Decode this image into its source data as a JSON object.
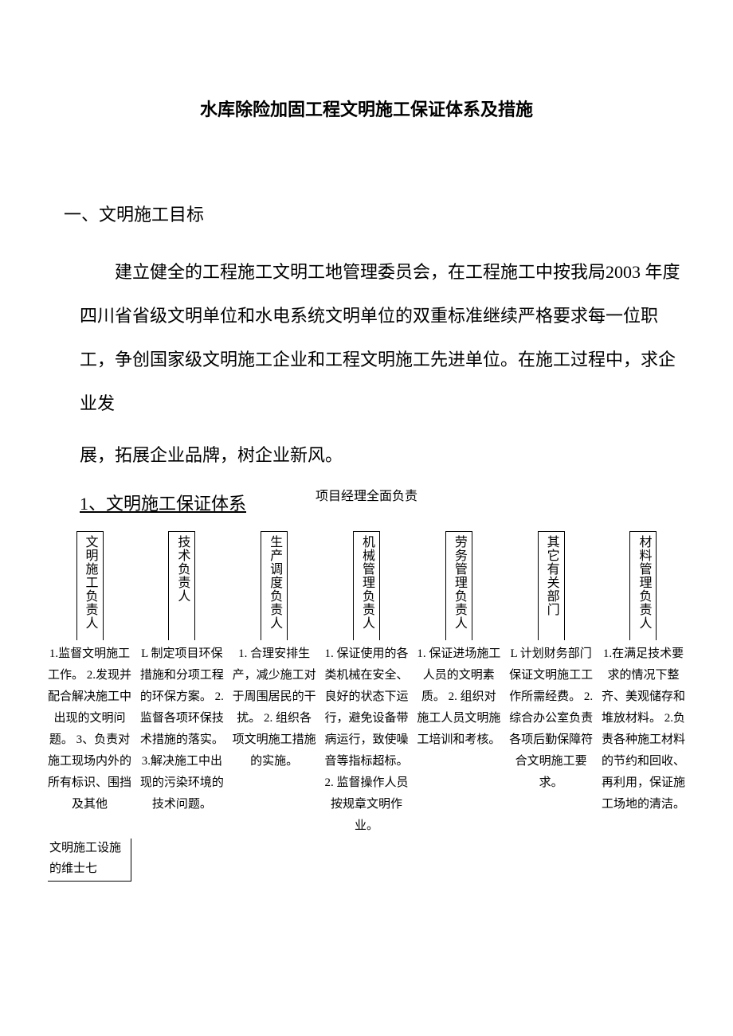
{
  "colors": {
    "bg": "#ffffff",
    "text": "#000000",
    "border": "#000000"
  },
  "typography": {
    "body_fontsize": 22,
    "small_fontsize": 16,
    "cell_fontsize": 15,
    "font_family": "SimSun"
  },
  "title": "水库除险加固工程文明施工保证体系及措施",
  "section1": {
    "heading": "一、文明施工目标",
    "para1": "建立健全的工程施工文明工地管理委员会，在工程施工中按我局2003 年度四川省省级文明单位和水电系统文明单位的双重标准继续严格要求每一位职工，争创国家级文明施工企业和工程文明施工先进单位。在施工过程中，求企业发",
    "para2": "展，拓展企业品牌，树企业新风。"
  },
  "sub_label": "项目经理全面负责",
  "sub_heading": "1、文明施工保证体系",
  "chart": {
    "columns": [
      {
        "role": "文明施工负责人",
        "details": "1.监督文明施工工作。\n2.发现并配合解决施工中出现的文明问题。\n3、负责对施工现场内外的所有标识、围挡及其他"
      },
      {
        "role": "技术负责人",
        "details": "L 制定项目环保措施和分项工程的环保方案。\n2.监督各项环保技术措施的落实。\n3.解决施工中出现的污染环境的技术问题。"
      },
      {
        "role": "生产调度负责人",
        "details": "1. 合理安排生产，减少施工对于周围居民的干扰。\n2. 组织各项文明施工措施的实施。"
      },
      {
        "role": "机械管理负责人",
        "details": "1. 保证使用的各类机械在安全、良好的状态下运行，避免设备带病运行，致使噪音等指标超标。\n2. 监督操作人员按规章文明作业。"
      },
      {
        "role": "劳务管理负责人",
        "details": "1. 保证进场施工人员的文明素质。\n2. 组织对施工人员文明施工培训和考核。"
      },
      {
        "role": "其它有关部门",
        "details": "L 计划财务部门保证文明施工工作所需经费。\n2.综合办公室负责各项后勤保障符合文明施工要求。"
      },
      {
        "role": "材料管理负责人",
        "details": "1.在满足技术要求的情况下整齐、美观储存和堆放材料。\n2.负责各种施工材料的节约和回收、再利用，保证施工场地的清洁。"
      }
    ],
    "extra": "文明施工设施的维士七"
  }
}
